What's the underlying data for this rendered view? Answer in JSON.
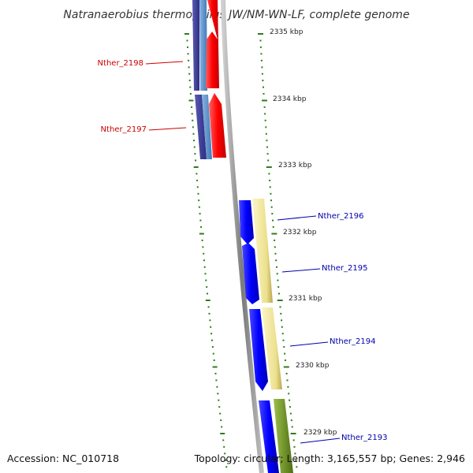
{
  "title": "Natranaerobius thermophilus JW/NM-WN-LF, complete genome",
  "footer": {
    "accession": "Accession: NC_010718",
    "summary": "Topology: circular; Length: 3,165,557 bp; Genes: 2,946"
  },
  "kbp_ticks": [
    {
      "label": "2335 kbp"
    },
    {
      "label": "2334 kbp"
    },
    {
      "label": "2333 kbp"
    },
    {
      "label": "2332 kbp"
    },
    {
      "label": "2331 kbp"
    },
    {
      "label": "2330 kbp"
    },
    {
      "label": "2329 kbp"
    }
  ],
  "genes": [
    {
      "name": "Nther_2198",
      "color": "#cc0000"
    },
    {
      "name": "Nther_2197",
      "color": "#cc0000"
    },
    {
      "name": "Nther_2196",
      "color": "#0000aa"
    },
    {
      "name": "Nther_2195",
      "color": "#0000aa"
    },
    {
      "name": "Nther_2194",
      "color": "#0000aa"
    },
    {
      "name": "Nther_2193",
      "color": "#0000aa"
    }
  ],
  "colors": {
    "backbone": "#888888",
    "forward_strand_top": "#ff0000",
    "forward_strand": "#0000ff",
    "cds_bar_top": "#3a3aa0",
    "cds_bar_light_top": "#5a8cc8",
    "cds_bar_yellow": "#f0e6a0",
    "cds_bar_green": "#6b8e23",
    "tick_green": "#2e7d1a"
  }
}
